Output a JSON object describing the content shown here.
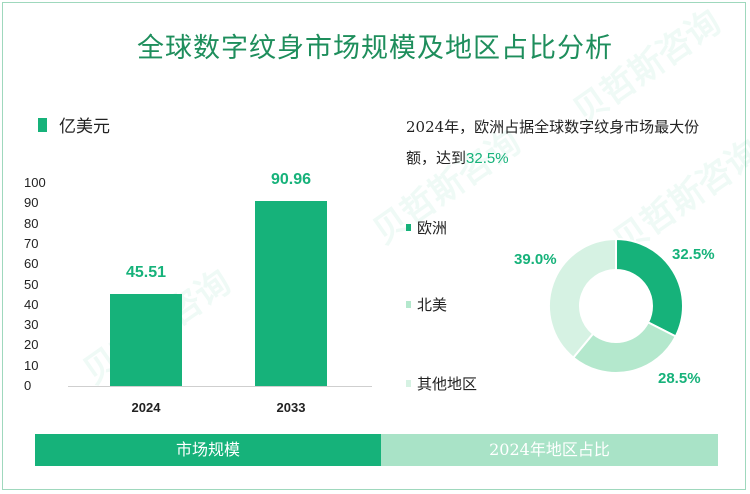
{
  "title": "全球数字纹身市场规模及地区占比分析",
  "watermark": "贝哲斯咨询",
  "bar_chart": {
    "unit_label": "亿美元",
    "y_ticks": [
      "100",
      "90",
      "80",
      "70",
      "60",
      "50",
      "40",
      "30",
      "20",
      "10",
      "0"
    ]
  },
  "description": {
    "text": "2024年，欧洲占据全球数字纹身市场最大份额，达到",
    "highlight": "32.5%"
  },
  "legend": {
    "europe": "欧洲",
    "north_america": "北美",
    "other": "其他地区"
  },
  "footer": {
    "left": "市场规模",
    "right": "2024年地区占比"
  },
  "colors": {
    "accent": "#16b27a",
    "europe": "#16b27a",
    "north_america": "#b4e8cd",
    "other": "#d6f2e3",
    "footer_right": "#a9e3c7"
  },
  "chart_data": [
    {
      "type": "bar",
      "categories": [
        "2024",
        "2033"
      ],
      "values": [
        45.51,
        90.96
      ],
      "value_labels": [
        "45.51",
        "90.96"
      ],
      "ylim": [
        0,
        100
      ],
      "ylabel": "亿美元"
    },
    {
      "type": "pie",
      "donut": true,
      "labels": [
        "欧洲",
        "北美",
        "其他地区"
      ],
      "values": [
        32.5,
        28.5,
        39.0
      ],
      "value_labels": [
        "32.5%",
        "28.5%",
        "39.0%"
      ]
    }
  ]
}
